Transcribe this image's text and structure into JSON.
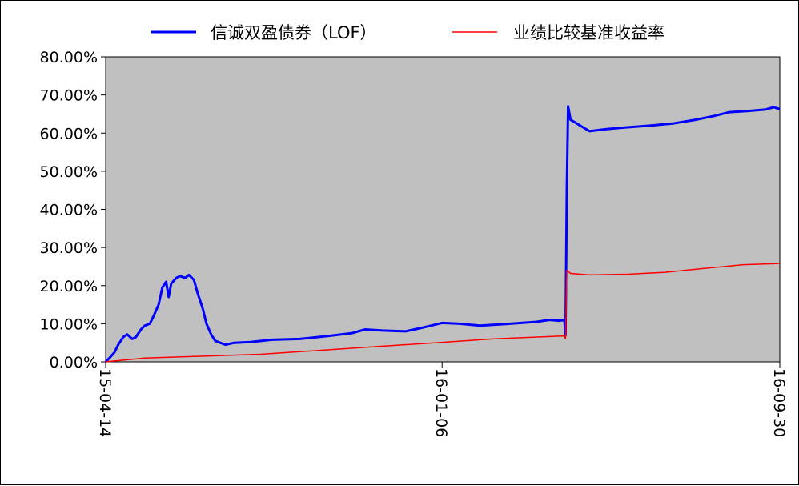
{
  "colors": {
    "plot_bg": "#c0c0c0",
    "series_fund": "#0000ff",
    "series_benchmark": "#ff0000"
  },
  "chart_data": {
    "type": "line",
    "title": "",
    "xlabel": "",
    "ylabel": "",
    "x_range": [
      "2015-04-14",
      "2016-09-30"
    ],
    "ylim": [
      0,
      80
    ],
    "y_ticks": [
      "0.00%",
      "10.00%",
      "20.00%",
      "30.00%",
      "40.00%",
      "50.00%",
      "60.00%",
      "70.00%",
      "80.00%"
    ],
    "x_ticks": [
      {
        "date": "2015-04-14",
        "label": "15-04-14"
      },
      {
        "date": "2016-01-06",
        "label": "16-01-06"
      },
      {
        "date": "2016-09-30",
        "label": "16-09-30"
      }
    ],
    "grid": false,
    "legend": "top",
    "series": [
      {
        "name": "信诚双盈债券（LOF）",
        "color": "#0000ff",
        "points": [
          [
            "2015-04-14",
            0.0
          ],
          [
            "2015-04-17",
            1.0
          ],
          [
            "2015-04-21",
            2.5
          ],
          [
            "2015-04-24",
            4.5
          ],
          [
            "2015-04-28",
            6.5
          ],
          [
            "2015-05-01",
            7.2
          ],
          [
            "2015-05-05",
            6.0
          ],
          [
            "2015-05-08",
            6.5
          ],
          [
            "2015-05-12",
            8.5
          ],
          [
            "2015-05-15",
            9.5
          ],
          [
            "2015-05-19",
            10.0
          ],
          [
            "2015-05-22",
            12.0
          ],
          [
            "2015-05-26",
            15.0
          ],
          [
            "2015-05-29",
            19.5
          ],
          [
            "2015-06-01",
            21.0
          ],
          [
            "2015-06-03",
            17.0
          ],
          [
            "2015-06-05",
            20.5
          ],
          [
            "2015-06-09",
            22.0
          ],
          [
            "2015-06-12",
            22.5
          ],
          [
            "2015-06-16",
            22.0
          ],
          [
            "2015-06-19",
            22.8
          ],
          [
            "2015-06-23",
            21.5
          ],
          [
            "2015-06-26",
            18.0
          ],
          [
            "2015-06-30",
            14.0
          ],
          [
            "2015-07-03",
            10.0
          ],
          [
            "2015-07-07",
            7.0
          ],
          [
            "2015-07-10",
            5.5
          ],
          [
            "2015-07-14",
            5.0
          ],
          [
            "2015-07-18",
            4.5
          ],
          [
            "2015-07-25",
            5.0
          ],
          [
            "2015-08-07",
            5.2
          ],
          [
            "2015-08-24",
            5.8
          ],
          [
            "2015-09-15",
            6.0
          ],
          [
            "2015-10-08",
            6.8
          ],
          [
            "2015-10-26",
            7.5
          ],
          [
            "2015-11-06",
            8.5
          ],
          [
            "2015-11-20",
            8.2
          ],
          [
            "2015-12-08",
            8.0
          ],
          [
            "2015-12-22",
            9.0
          ],
          [
            "2016-01-06",
            10.2
          ],
          [
            "2016-01-20",
            10.0
          ],
          [
            "2016-02-05",
            9.5
          ],
          [
            "2016-02-29",
            10.0
          ],
          [
            "2016-03-21",
            10.5
          ],
          [
            "2016-03-31",
            11.0
          ],
          [
            "2016-04-08",
            10.8
          ],
          [
            "2016-04-12",
            11.0
          ],
          [
            "2016-04-13",
            7.0
          ],
          [
            "2016-04-14",
            45.0
          ],
          [
            "2016-04-15",
            67.0
          ],
          [
            "2016-04-17",
            63.5
          ],
          [
            "2016-04-22",
            62.5
          ],
          [
            "2016-05-02",
            60.5
          ],
          [
            "2016-05-14",
            61.0
          ],
          [
            "2016-05-31",
            61.5
          ],
          [
            "2016-06-20",
            62.0
          ],
          [
            "2016-07-07",
            62.5
          ],
          [
            "2016-07-25",
            63.5
          ],
          [
            "2016-08-09",
            64.5
          ],
          [
            "2016-08-21",
            65.5
          ],
          [
            "2016-09-05",
            65.8
          ],
          [
            "2016-09-19",
            66.2
          ],
          [
            "2016-09-25",
            66.8
          ],
          [
            "2016-09-30",
            66.3
          ]
        ]
      },
      {
        "name": "业绩比较基准收益率",
        "color": "#ff0000",
        "points": [
          [
            "2015-04-14",
            0.0
          ],
          [
            "2015-05-15",
            1.0
          ],
          [
            "2015-06-30",
            1.5
          ],
          [
            "2015-08-15",
            2.0
          ],
          [
            "2015-09-30",
            3.0
          ],
          [
            "2015-11-15",
            4.0
          ],
          [
            "2015-12-31",
            5.0
          ],
          [
            "2016-02-15",
            6.0
          ],
          [
            "2016-04-12",
            6.8
          ],
          [
            "2016-04-13",
            6.0
          ],
          [
            "2016-04-14",
            24.0
          ],
          [
            "2016-04-17",
            23.2
          ],
          [
            "2016-05-02",
            22.8
          ],
          [
            "2016-06-01",
            23.0
          ],
          [
            "2016-07-01",
            23.5
          ],
          [
            "2016-08-01",
            24.5
          ],
          [
            "2016-09-01",
            25.5
          ],
          [
            "2016-09-30",
            25.8
          ]
        ]
      }
    ]
  }
}
